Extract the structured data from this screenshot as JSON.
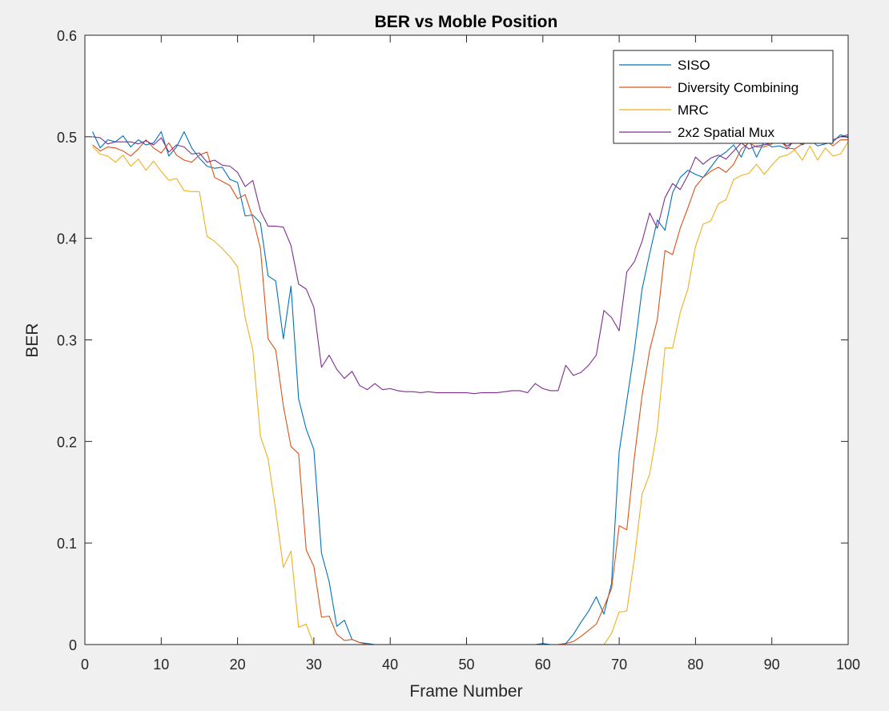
{
  "chart_data": {
    "type": "line",
    "title": "BER vs Moble Position",
    "xlabel": "Frame Number",
    "ylabel": "BER",
    "xlim": [
      0,
      100
    ],
    "ylim": [
      0,
      0.6
    ],
    "xticks": [
      0,
      10,
      20,
      30,
      40,
      50,
      60,
      70,
      80,
      90,
      100
    ],
    "yticks": [
      0,
      0.1,
      0.2,
      0.3,
      0.4,
      0.5,
      0.6
    ],
    "xtick_labels": [
      "0",
      "10",
      "20",
      "30",
      "40",
      "50",
      "60",
      "70",
      "80",
      "90",
      "100"
    ],
    "ytick_labels": [
      "0",
      "0.1",
      "0.2",
      "0.3",
      "0.4",
      "0.5",
      "0.6"
    ],
    "grid": false,
    "legend_position": "top-right",
    "x": [
      1,
      2,
      3,
      4,
      5,
      6,
      7,
      8,
      9,
      10,
      11,
      12,
      13,
      14,
      15,
      16,
      17,
      18,
      19,
      20,
      21,
      22,
      23,
      24,
      25,
      26,
      27,
      28,
      29,
      30,
      31,
      32,
      33,
      34,
      35,
      36,
      37,
      38,
      39,
      40,
      41,
      42,
      43,
      44,
      45,
      46,
      47,
      48,
      49,
      50,
      51,
      52,
      53,
      54,
      55,
      56,
      57,
      58,
      59,
      60,
      61,
      62,
      63,
      64,
      65,
      66,
      67,
      68,
      69,
      70,
      71,
      72,
      73,
      74,
      75,
      76,
      77,
      78,
      79,
      80,
      81,
      82,
      83,
      84,
      85,
      86,
      87,
      88,
      89,
      90,
      91,
      92,
      93,
      94,
      95,
      96,
      97,
      98,
      99,
      100
    ],
    "series": [
      {
        "name": "SISO",
        "color": "#0072bd",
        "values": [
          0.505,
          0.489,
          0.497,
          0.495,
          0.501,
          0.49,
          0.497,
          0.492,
          0.494,
          0.505,
          0.481,
          0.49,
          0.505,
          0.489,
          0.479,
          0.471,
          0.469,
          0.47,
          0.458,
          0.455,
          0.422,
          0.423,
          0.415,
          0.363,
          0.358,
          0.301,
          0.353,
          0.242,
          0.212,
          0.192,
          0.09,
          0.062,
          0.018,
          0.024,
          0.005,
          0.002,
          0.001,
          0,
          0,
          0,
          0,
          0,
          0,
          0,
          0,
          0,
          0,
          0,
          0,
          0,
          0,
          0,
          0,
          0,
          0,
          0,
          0,
          0,
          0,
          0.001,
          0,
          0,
          0.001,
          0.01,
          0.022,
          0.033,
          0.047,
          0.03,
          0.06,
          0.19,
          0.24,
          0.29,
          0.35,
          0.385,
          0.418,
          0.408,
          0.445,
          0.46,
          0.467,
          0.463,
          0.46,
          0.47,
          0.48,
          0.485,
          0.492,
          0.48,
          0.497,
          0.48,
          0.495,
          0.49,
          0.491,
          0.488,
          0.497,
          0.492,
          0.497,
          0.491,
          0.493,
          0.495,
          0.502,
          0.499
        ]
      },
      {
        "name": "Diversity Combining",
        "color": "#d95319",
        "values": [
          0.492,
          0.486,
          0.49,
          0.489,
          0.486,
          0.481,
          0.488,
          0.497,
          0.489,
          0.484,
          0.494,
          0.482,
          0.477,
          0.475,
          0.482,
          0.485,
          0.46,
          0.456,
          0.452,
          0.439,
          0.443,
          0.42,
          0.39,
          0.301,
          0.29,
          0.235,
          0.195,
          0.188,
          0.093,
          0.077,
          0.027,
          0.028,
          0.01,
          0.004,
          0.005,
          0.002,
          0,
          0,
          0,
          0,
          0,
          0,
          0,
          0,
          0,
          0,
          0,
          0,
          0,
          0,
          0,
          0,
          0,
          0,
          0,
          0,
          0,
          0,
          0,
          0,
          0,
          0,
          0.001,
          0.003,
          0.008,
          0.014,
          0.02,
          0.037,
          0.055,
          0.117,
          0.113,
          0.185,
          0.245,
          0.29,
          0.32,
          0.388,
          0.384,
          0.41,
          0.43,
          0.451,
          0.46,
          0.466,
          0.47,
          0.465,
          0.473,
          0.488,
          0.494,
          0.49,
          0.49,
          0.493,
          0.497,
          0.489,
          0.488,
          0.493,
          0.496,
          0.495,
          0.497,
          0.491,
          0.497,
          0.497
        ]
      },
      {
        "name": "MRC",
        "color": "#edb120",
        "values": [
          0.49,
          0.483,
          0.481,
          0.475,
          0.482,
          0.471,
          0.478,
          0.467,
          0.476,
          0.466,
          0.457,
          0.459,
          0.447,
          0.446,
          0.446,
          0.402,
          0.397,
          0.39,
          0.382,
          0.372,
          0.322,
          0.29,
          0.205,
          0.183,
          0.132,
          0.076,
          0.092,
          0.017,
          0.02,
          0,
          0,
          0,
          0,
          0,
          0,
          0,
          0,
          0,
          0,
          0,
          0,
          0,
          0,
          0,
          0,
          0,
          0,
          0,
          0,
          0,
          0,
          0,
          0,
          0,
          0,
          0,
          0,
          0,
          0,
          0,
          0,
          0,
          0,
          0,
          0,
          0,
          0,
          0,
          0.011,
          0.032,
          0.033,
          0.085,
          0.148,
          0.168,
          0.212,
          0.292,
          0.292,
          0.327,
          0.35,
          0.392,
          0.414,
          0.417,
          0.434,
          0.438,
          0.458,
          0.462,
          0.464,
          0.473,
          0.463,
          0.472,
          0.48,
          0.482,
          0.487,
          0.477,
          0.491,
          0.477,
          0.489,
          0.481,
          0.483,
          0.495
        ]
      },
      {
        "name": "2x2 Spatial Mux",
        "color": "#7e2f8e",
        "values": [
          0.5,
          0.499,
          0.493,
          0.495,
          0.495,
          0.495,
          0.493,
          0.496,
          0.492,
          0.499,
          0.485,
          0.492,
          0.49,
          0.483,
          0.484,
          0.475,
          0.477,
          0.472,
          0.471,
          0.465,
          0.451,
          0.457,
          0.427,
          0.412,
          0.412,
          0.411,
          0.393,
          0.355,
          0.35,
          0.332,
          0.273,
          0.285,
          0.271,
          0.262,
          0.269,
          0.255,
          0.251,
          0.257,
          0.251,
          0.252,
          0.25,
          0.249,
          0.249,
          0.248,
          0.249,
          0.248,
          0.248,
          0.248,
          0.248,
          0.248,
          0.247,
          0.248,
          0.248,
          0.248,
          0.249,
          0.25,
          0.25,
          0.248,
          0.257,
          0.252,
          0.25,
          0.25,
          0.275,
          0.265,
          0.268,
          0.275,
          0.285,
          0.329,
          0.322,
          0.309,
          0.367,
          0.377,
          0.397,
          0.425,
          0.41,
          0.44,
          0.454,
          0.448,
          0.462,
          0.48,
          0.473,
          0.479,
          0.482,
          0.478,
          0.486,
          0.494,
          0.488,
          0.491,
          0.492,
          0.494,
          0.496,
          0.491,
          0.495,
          0.495,
          0.497,
          0.494,
          0.498,
          0.497,
          0.5,
          0.502
        ]
      }
    ]
  }
}
